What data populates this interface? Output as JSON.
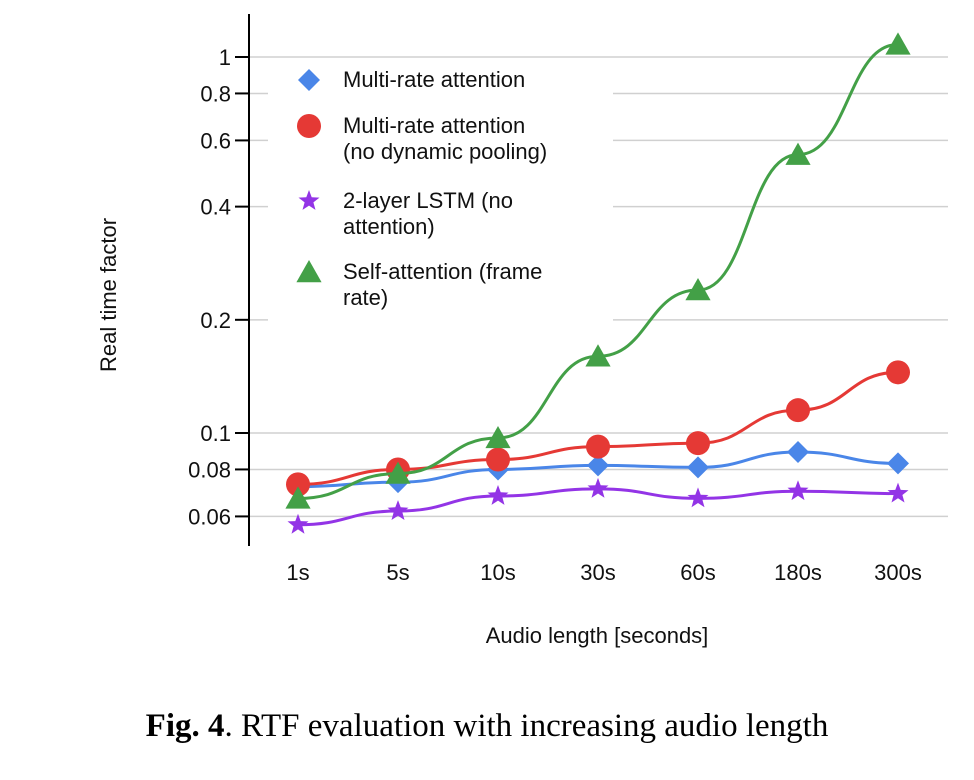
{
  "chart_data": {
    "type": "line",
    "xlabel": "Audio length [seconds]",
    "ylabel": "Real time factor",
    "y_scale": "log",
    "ylim": [
      0.05,
      1.1
    ],
    "y_ticks": [
      0.06,
      0.08,
      0.1,
      0.2,
      0.4,
      0.6,
      0.8,
      1
    ],
    "y_tick_labels": [
      "0.06",
      "0.08",
      "0.1",
      "0.2",
      "0.4",
      "0.6",
      "0.8",
      "1"
    ],
    "categories": [
      "1s",
      "5s",
      "10s",
      "30s",
      "60s",
      "180s",
      "300s"
    ],
    "grid": true,
    "legend_position": "top-left",
    "series": [
      {
        "name": "Multi-rate attention",
        "marker": "diamond",
        "color": "#4a86e8",
        "values": [
          0.072,
          0.074,
          0.08,
          0.082,
          0.081,
          0.089,
          0.083
        ]
      },
      {
        "name": "Multi-rate attention (no dynamic pooling)",
        "marker": "circle",
        "color": "#e53935",
        "values": [
          0.073,
          0.08,
          0.085,
          0.092,
          0.094,
          0.115,
          0.145
        ]
      },
      {
        "name": "2-layer LSTM (no attention)",
        "marker": "star",
        "color": "#9334e6",
        "values": [
          0.057,
          0.062,
          0.068,
          0.071,
          0.067,
          0.07,
          0.069
        ]
      },
      {
        "name": "Self-attention (frame rate)",
        "marker": "triangle",
        "color": "#43a047",
        "values": [
          0.067,
          0.078,
          0.097,
          0.16,
          0.24,
          0.55,
          1.08
        ]
      }
    ],
    "legend_lines": [
      [
        "Multi-rate attention"
      ],
      [
        "Multi-rate attention",
        "(no dynamic pooling)"
      ],
      [
        "2-layer LSTM (no",
        "attention)"
      ],
      [
        "Self-attention (frame",
        "rate)"
      ]
    ]
  },
  "caption": {
    "label": "Fig. 4",
    "text": ". RTF evaluation with increasing audio length"
  }
}
